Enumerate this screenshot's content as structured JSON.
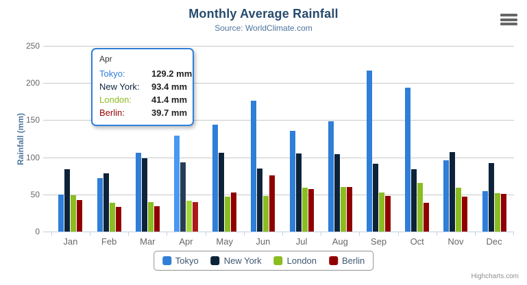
{
  "chart": {
    "title": "Monthly Average Rainfall",
    "subtitle": "Source: WorldClimate.com",
    "y_axis_title": "Rainfall (mm)",
    "credits": "Highcharts.com"
  },
  "chart_data": {
    "type": "bar",
    "title": "Monthly Average Rainfall",
    "subtitle": "Source: WorldClimate.com",
    "xlabel": "",
    "ylabel": "Rainfall (mm)",
    "ylim": [
      0,
      250
    ],
    "yticks": [
      0,
      50,
      100,
      150,
      200,
      250
    ],
    "grid": true,
    "legend_position": "bottom",
    "categories": [
      "Jan",
      "Feb",
      "Mar",
      "Apr",
      "May",
      "Jun",
      "Jul",
      "Aug",
      "Sep",
      "Oct",
      "Nov",
      "Dec"
    ],
    "series": [
      {
        "name": "Tokyo",
        "color": "#2f7ed8",
        "hover_color": "#4998f2",
        "values": [
          49.9,
          71.5,
          106.4,
          129.2,
          144.0,
          176.0,
          135.6,
          148.5,
          216.4,
          194.1,
          95.6,
          54.4
        ]
      },
      {
        "name": "New York",
        "color": "#0d233a",
        "hover_color": "#273d54",
        "values": [
          83.6,
          78.8,
          98.5,
          93.4,
          106.0,
          84.5,
          105.0,
          104.3,
          91.2,
          83.5,
          106.6,
          92.3
        ]
      },
      {
        "name": "London",
        "color": "#8bbc21",
        "hover_color": "#a5d63b",
        "values": [
          48.9,
          38.8,
          39.3,
          41.4,
          47.0,
          48.3,
          59.0,
          59.6,
          52.4,
          65.2,
          59.3,
          51.2
        ]
      },
      {
        "name": "Berlin",
        "color": "#910000",
        "hover_color": "#ab1a1a",
        "values": [
          42.4,
          33.2,
          34.5,
          39.7,
          52.6,
          75.5,
          57.4,
          60.4,
          47.6,
          39.1,
          46.8,
          51.1
        ]
      }
    ],
    "hovered_category": "Apr",
    "hovered_category_index": 3
  },
  "tooltip": {
    "header": "Apr",
    "rows": [
      {
        "label": "Tokyo:",
        "value": "129.2 mm",
        "color": "#2f7ed8"
      },
      {
        "label": "New York:",
        "value": "93.4 mm",
        "color": "#0d233a"
      },
      {
        "label": "London:",
        "value": "41.4 mm",
        "color": "#8bbc21"
      },
      {
        "label": "Berlin:",
        "value": "39.7 mm",
        "color": "#910000"
      }
    ],
    "border_color": "#2f7ed8"
  },
  "legend": {
    "items": [
      {
        "label": "Tokyo",
        "color": "#2f7ed8"
      },
      {
        "label": "New York",
        "color": "#0d233a"
      },
      {
        "label": "London",
        "color": "#8bbc21"
      },
      {
        "label": "Berlin",
        "color": "#910000"
      }
    ]
  },
  "colors": {
    "title": "#274b6d",
    "subtitle": "#4d759e",
    "axis_line": "#c0d0e0",
    "gridline": "#c8c8c8",
    "axis_label": "#666666",
    "credits": "#909090"
  }
}
